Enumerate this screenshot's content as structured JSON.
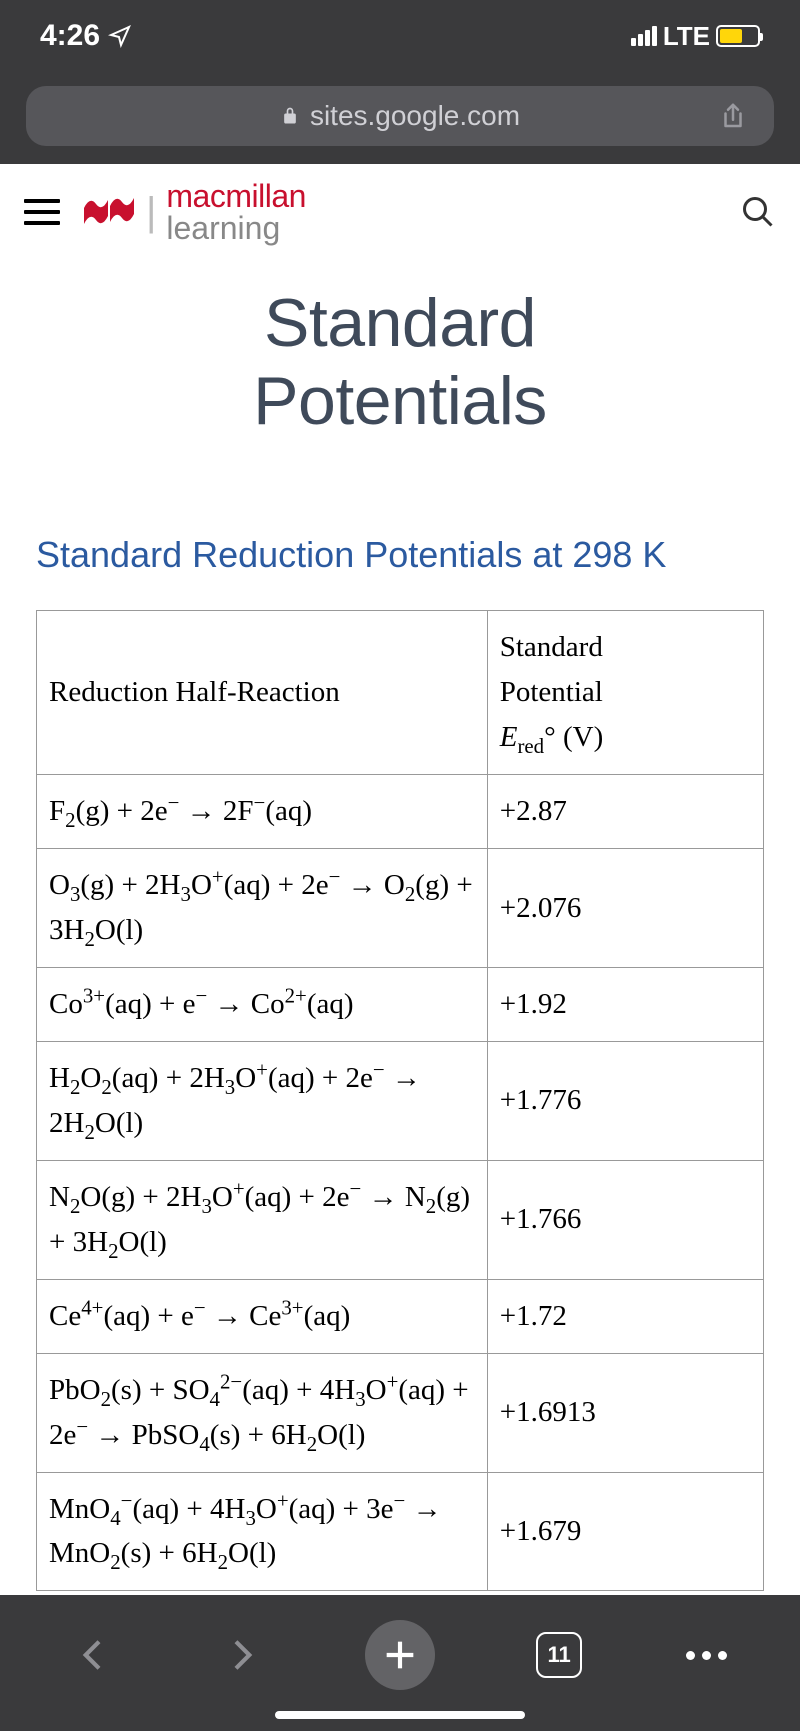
{
  "status": {
    "time": "4:26",
    "network": "LTE"
  },
  "browser": {
    "url": "sites.google.com",
    "tab_count": "11"
  },
  "brand": {
    "top": "macmillan",
    "bottom": "learning"
  },
  "page": {
    "title_line1": "Standard",
    "title_line2": "Potentials",
    "heading": "Standard Reduction Potentials at 298 K"
  },
  "table": {
    "columns": {
      "reaction": "Reduction Half-Reaction",
      "potential_l1": "Standard",
      "potential_l2": "Potential",
      "potential_unit": " (V)"
    },
    "rows": [
      {
        "reaction_html": "F<sub>2</sub>(g) + 2e<sup>−</sup> → 2F<sup>−</sup>(aq)",
        "potential": "+2.87"
      },
      {
        "reaction_html": "O<sub>3</sub>(g) + 2H<sub>3</sub>O<sup>+</sup>(aq) + 2e<sup>−</sup> → O<sub>2</sub>(g) + 3H<sub>2</sub>O(l)",
        "potential": "+2.076"
      },
      {
        "reaction_html": "Co<sup>3+</sup>(aq) + e<sup>−</sup> → Co<sup>2+</sup>(aq)",
        "potential": "+1.92"
      },
      {
        "reaction_html": "H<sub>2</sub>O<sub>2</sub>(aq) + 2H<sub>3</sub>O<sup>+</sup>(aq) + 2e<sup>−</sup> → 2H<sub>2</sub>O(l)",
        "potential": "+1.776"
      },
      {
        "reaction_html": "N<sub>2</sub>O(g) + 2H<sub>3</sub>O<sup>+</sup>(aq) + 2e<sup>−</sup> → N<sub>2</sub>(g) + 3H<sub>2</sub>O(l)",
        "potential": "+1.766"
      },
      {
        "reaction_html": "Ce<sup>4+</sup>(aq) + e<sup>−</sup> → Ce<sup>3+</sup>(aq)",
        "potential": "+1.72"
      },
      {
        "reaction_html": "PbO<sub>2</sub>(s) + SO<sub>4</sub><sup>2−</sup>(aq) + 4H<sub>3</sub>O<sup>+</sup>(aq) + 2e<sup>−</sup> → PbSO<sub>4</sub>(s) + 6H<sub>2</sub>O(l)",
        "potential": "+1.6913"
      },
      {
        "reaction_html": "MnO<sub>4</sub><sup>−</sup>(aq) + 4H<sub>3</sub>O<sup>+</sup>(aq) + 3e<sup>−</sup> → MnO<sub>2</sub>(s) + 6H<sub>2</sub>O(l)",
        "potential": "+1.679"
      }
    ]
  }
}
